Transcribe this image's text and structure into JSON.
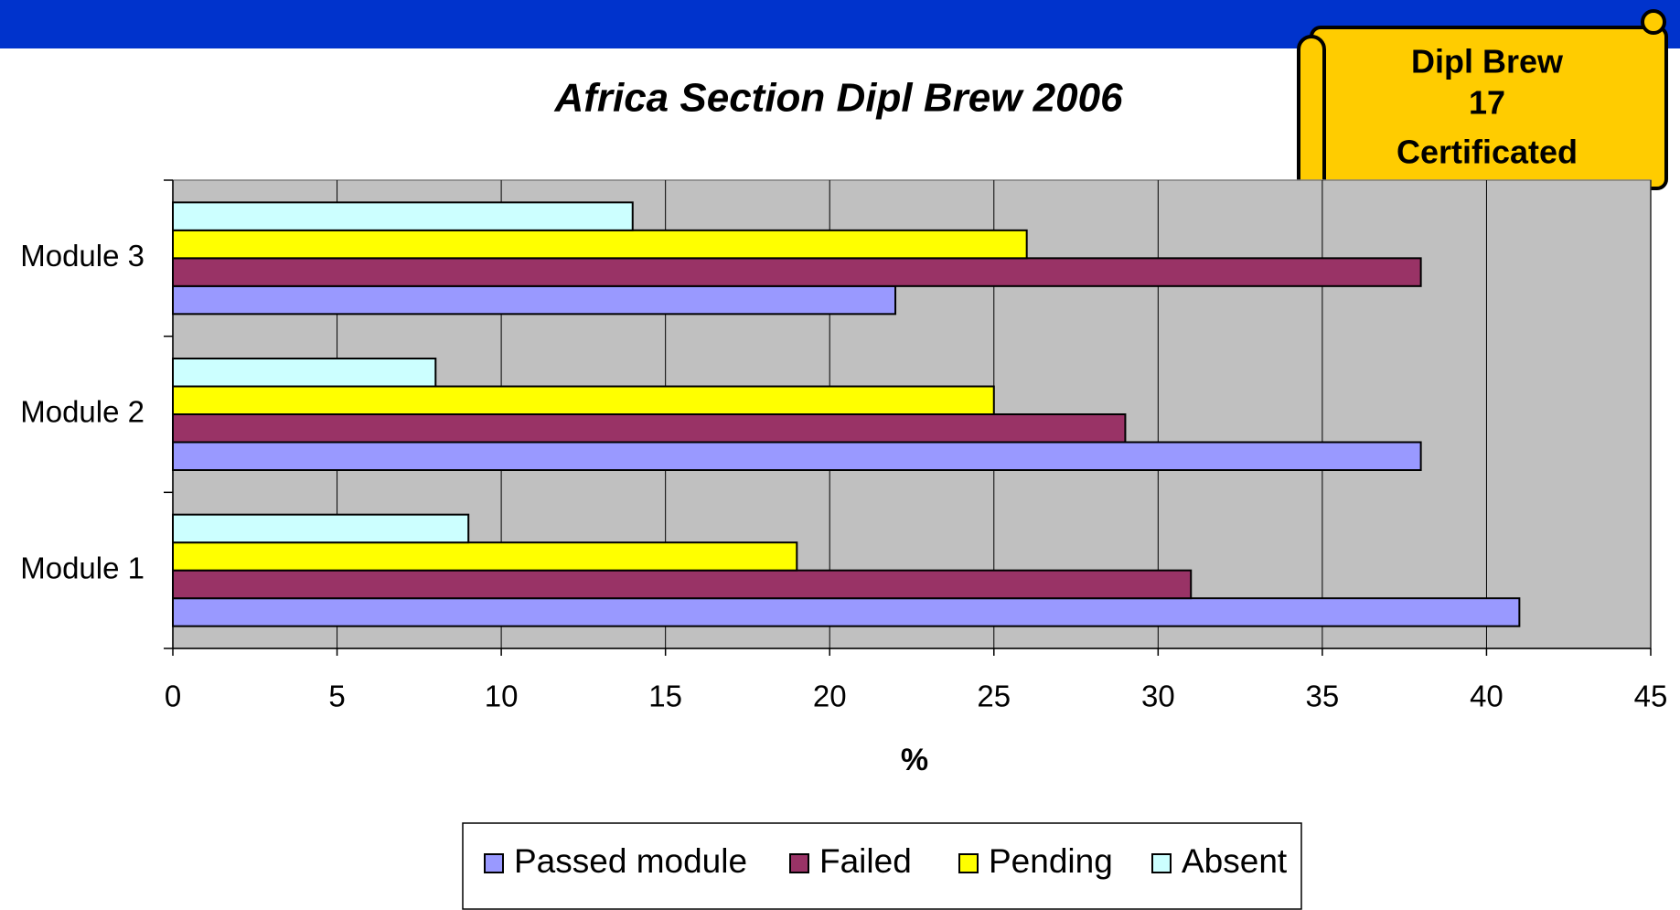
{
  "chart_data": {
    "type": "bar",
    "orientation": "horizontal",
    "title": "Africa Section Dipl Brew 2006",
    "x_label": "%",
    "annotation": [
      "Dipl Brew",
      "17",
      "Certificated"
    ],
    "categories": [
      "Module 1",
      "Module 2",
      "Module 3"
    ],
    "series": [
      {
        "name": "Passed module",
        "color": "#9999ff",
        "values": [
          41,
          38,
          22
        ]
      },
      {
        "name": "Failed",
        "color": "#993366",
        "values": [
          31,
          29,
          38
        ]
      },
      {
        "name": "Pending",
        "color": "#ffff00",
        "values": [
          19,
          25,
          26
        ]
      },
      {
        "name": "Absent",
        "color": "#ccffff",
        "values": [
          9,
          8,
          14
        ]
      }
    ],
    "xlim": [
      0,
      45
    ],
    "xticks": [
      0,
      5,
      10,
      15,
      20,
      25,
      30,
      35,
      40,
      45
    ],
    "grid": true,
    "legend": "bottom"
  }
}
